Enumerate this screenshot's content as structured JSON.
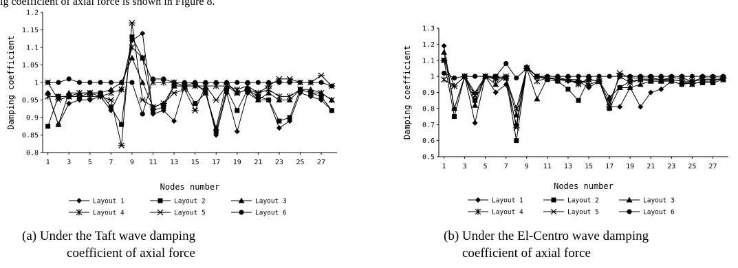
{
  "top_text": "ig coefficient of axial force is shown in Figure 8.",
  "captions": {
    "a_line1": "(a) Under the Taft wave damping",
    "a_line2": "coefficient of axial force",
    "b_line1": "(b) Under the El-Centro wave damping",
    "b_line2": "coefficient of axial force"
  },
  "legend_labels": [
    "Layout 1",
    "Layout 2",
    "Layout 3",
    "Layout 4",
    "Layout 5",
    "Layout 6"
  ],
  "chart_data": [
    {
      "type": "line",
      "ylabel": "Damping coefficient",
      "xlabel": "Nodes number",
      "ylim": [
        0.8,
        1.2
      ],
      "yticks": [
        "0.8",
        "0.85",
        "0.9",
        "0.95",
        "1",
        "1.05",
        "1.1",
        "1.15",
        "1.2"
      ],
      "xticks": [
        "1",
        "3",
        "5",
        "7",
        "9",
        "11",
        "13",
        "15",
        "17",
        "19",
        "21",
        "23",
        "25",
        "27"
      ],
      "x": [
        1,
        2,
        3,
        4,
        5,
        6,
        7,
        8,
        9,
        10,
        11,
        12,
        13,
        14,
        15,
        16,
        17,
        18,
        19,
        20,
        21,
        22,
        23,
        24,
        25,
        26,
        27,
        28
      ],
      "grid": false,
      "legend_position": "bottom",
      "series": [
        {
          "name": "Layout 1",
          "values": [
            0.97,
            0.88,
            0.94,
            0.95,
            0.95,
            0.96,
            0.92,
            0.98,
            1.12,
            1.14,
            0.91,
            0.92,
            0.89,
            0.99,
            0.99,
            0.98,
            0.85,
            0.97,
            0.86,
            0.97,
            0.95,
            0.95,
            0.87,
            0.89,
            0.97,
            0.96,
            0.95,
            0.92
          ]
        },
        {
          "name": "Layout 2",
          "values": [
            0.875,
            0.96,
            0.96,
            0.96,
            0.97,
            0.97,
            0.93,
            0.88,
            1.13,
            1.07,
            0.92,
            0.93,
            0.99,
            0.99,
            0.94,
            0.97,
            0.86,
            0.98,
            0.92,
            0.98,
            0.96,
            0.95,
            0.89,
            0.9,
            0.98,
            0.97,
            0.96,
            0.92
          ]
        },
        {
          "name": "Layout 3",
          "values": [
            0.97,
            0.88,
            0.97,
            0.97,
            0.97,
            0.97,
            0.98,
            1.0,
            1.07,
            1.0,
            0.93,
            0.94,
            0.99,
            0.99,
            1.0,
            0.97,
            0.87,
            1.0,
            0.97,
            0.98,
            0.95,
            0.97,
            0.95,
            0.95,
            0.98,
            0.98,
            0.97,
            0.95
          ]
        },
        {
          "name": "Layout 4",
          "values": [
            0.96,
            0.96,
            0.96,
            0.97,
            0.97,
            0.96,
            0.97,
            0.98,
            1.1,
            1.07,
            1.0,
            1.0,
            1.0,
            0.99,
            0.99,
            0.99,
            0.99,
            0.99,
            0.98,
            0.99,
            0.97,
            0.98,
            0.96,
            0.96,
            0.98,
            0.97,
            0.97,
            0.95
          ]
        },
        {
          "name": "Layout 5",
          "values": [
            1.0,
            0.95,
            0.96,
            0.96,
            0.96,
            0.96,
            0.95,
            0.82,
            1.17,
            0.95,
            0.93,
            0.94,
            0.97,
            0.98,
            0.92,
            0.99,
            0.95,
            0.99,
            0.97,
            0.98,
            0.97,
            0.99,
            1.01,
            1.01,
            1.0,
            1.0,
            1.02,
            0.99
          ]
        },
        {
          "name": "Layout 6",
          "values": [
            1.0,
            1.0,
            1.01,
            1.0,
            1.0,
            1.0,
            1.0,
            1.0,
            1.0,
            0.91,
            1.01,
            1.01,
            1.0,
            1.0,
            1.0,
            1.0,
            1.0,
            1.0,
            1.0,
            1.0,
            1.0,
            1.0,
            1.0,
            1.0,
            1.0,
            1.0,
            1.0,
            0.99
          ]
        }
      ]
    },
    {
      "type": "line",
      "ylabel": "Damping coefficient",
      "xlabel": "Nodes number",
      "ylim": [
        0.5,
        1.3
      ],
      "yticks": [
        "0.5",
        "0.6",
        "0.7",
        "0.8",
        "0.9",
        "1",
        "1.1",
        "1.2",
        "1.3"
      ],
      "xticks": [
        "1",
        "3",
        "5",
        "7",
        "9",
        "11",
        "13",
        "15",
        "17",
        "19",
        "21",
        "23",
        "25",
        "27"
      ],
      "x": [
        1,
        2,
        3,
        4,
        5,
        6,
        7,
        8,
        9,
        10,
        11,
        12,
        13,
        14,
        15,
        16,
        17,
        18,
        19,
        20,
        21,
        22,
        23,
        24,
        25,
        26,
        27,
        28
      ],
      "grid": false,
      "legend_position": "bottom",
      "series": [
        {
          "name": "Layout 1",
          "values": [
            1.19,
            0.8,
            1.0,
            0.71,
            1.0,
            0.9,
            0.95,
            0.7,
            1.06,
            1.0,
            0.99,
            0.98,
            0.97,
            0.97,
            0.93,
            0.97,
            0.81,
            0.81,
            0.93,
            0.81,
            0.9,
            0.92,
            0.97,
            0.95,
            0.97,
            0.98,
            0.98,
            0.98
          ]
        },
        {
          "name": "Layout 2",
          "values": [
            1.1,
            0.75,
            1.0,
            0.85,
            1.0,
            1.0,
            0.99,
            0.6,
            1.05,
            1.0,
            0.98,
            0.97,
            0.92,
            0.85,
            0.98,
            0.97,
            0.8,
            0.93,
            0.97,
            0.98,
            0.97,
            0.97,
            0.97,
            0.95,
            0.96,
            0.96,
            0.96,
            0.98
          ]
        },
        {
          "name": "Layout 3",
          "values": [
            1.15,
            0.8,
            1.0,
            0.82,
            1.0,
            0.95,
            1.0,
            0.76,
            1.05,
            0.86,
            0.99,
            0.99,
            0.98,
            0.98,
            0.95,
            0.97,
            0.87,
            0.93,
            0.93,
            0.95,
            0.97,
            0.97,
            0.98,
            0.97,
            0.95,
            0.97,
            0.97,
            0.99
          ]
        },
        {
          "name": "Layout 4",
          "values": [
            0.98,
            0.94,
            1.0,
            0.88,
            1.0,
            0.98,
            0.99,
            0.8,
            1.05,
            0.97,
            0.99,
            0.98,
            0.98,
            0.95,
            0.98,
            0.97,
            0.84,
            1.0,
            0.96,
            0.98,
            0.98,
            0.98,
            0.98,
            0.97,
            0.97,
            0.98,
            0.98,
            0.98
          ]
        },
        {
          "name": "Layout 5",
          "values": [
            1.1,
            0.94,
            1.0,
            0.9,
            1.0,
            0.99,
            1.0,
            0.68,
            1.05,
            1.0,
            0.99,
            0.98,
            0.98,
            0.96,
            0.98,
            0.97,
            0.81,
            1.02,
            0.99,
            0.99,
            0.99,
            0.98,
            0.99,
            0.99,
            0.97,
            0.99,
            0.99,
            0.99
          ]
        },
        {
          "name": "Layout 6",
          "values": [
            1.02,
            0.99,
            1.0,
            1.0,
            1.0,
            1.0,
            1.08,
            0.99,
            1.05,
            1.0,
            1.0,
            1.0,
            1.0,
            1.0,
            1.0,
            1.0,
            1.0,
            1.0,
            1.0,
            1.0,
            1.0,
            1.0,
            1.0,
            1.0,
            1.0,
            1.0,
            1.0,
            1.0
          ]
        }
      ]
    }
  ]
}
